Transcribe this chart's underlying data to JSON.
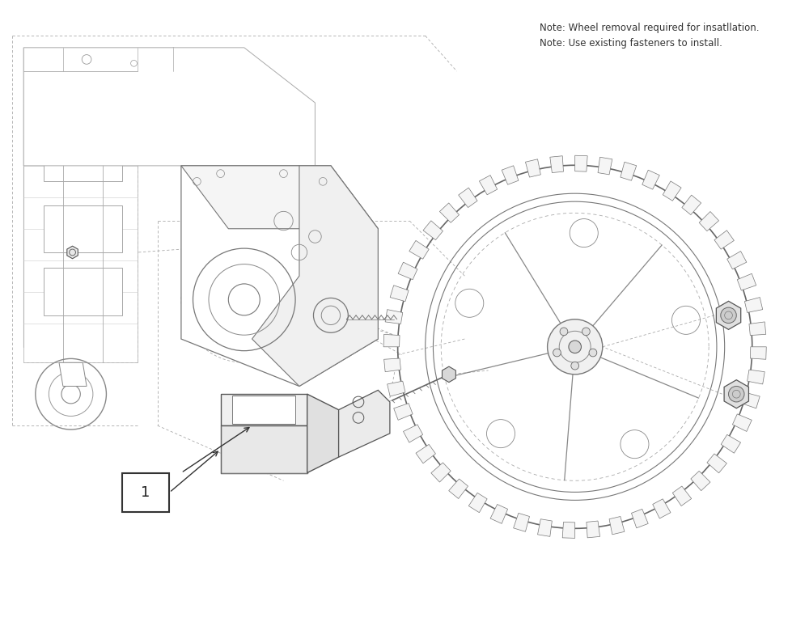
{
  "background_color": "#ffffff",
  "note_line1": "Note: Wheel removal required for insatllation.",
  "note_line2": "Note: Use existing fasteners to install.",
  "note_color": "#333333",
  "note_fontsize": 8.5,
  "label_text": "1",
  "label_fontsize": 13,
  "fig_width": 10.0,
  "fig_height": 7.69,
  "line_color": "#555555",
  "light_line": "#999999",
  "dash_color": "#aaaaaa"
}
